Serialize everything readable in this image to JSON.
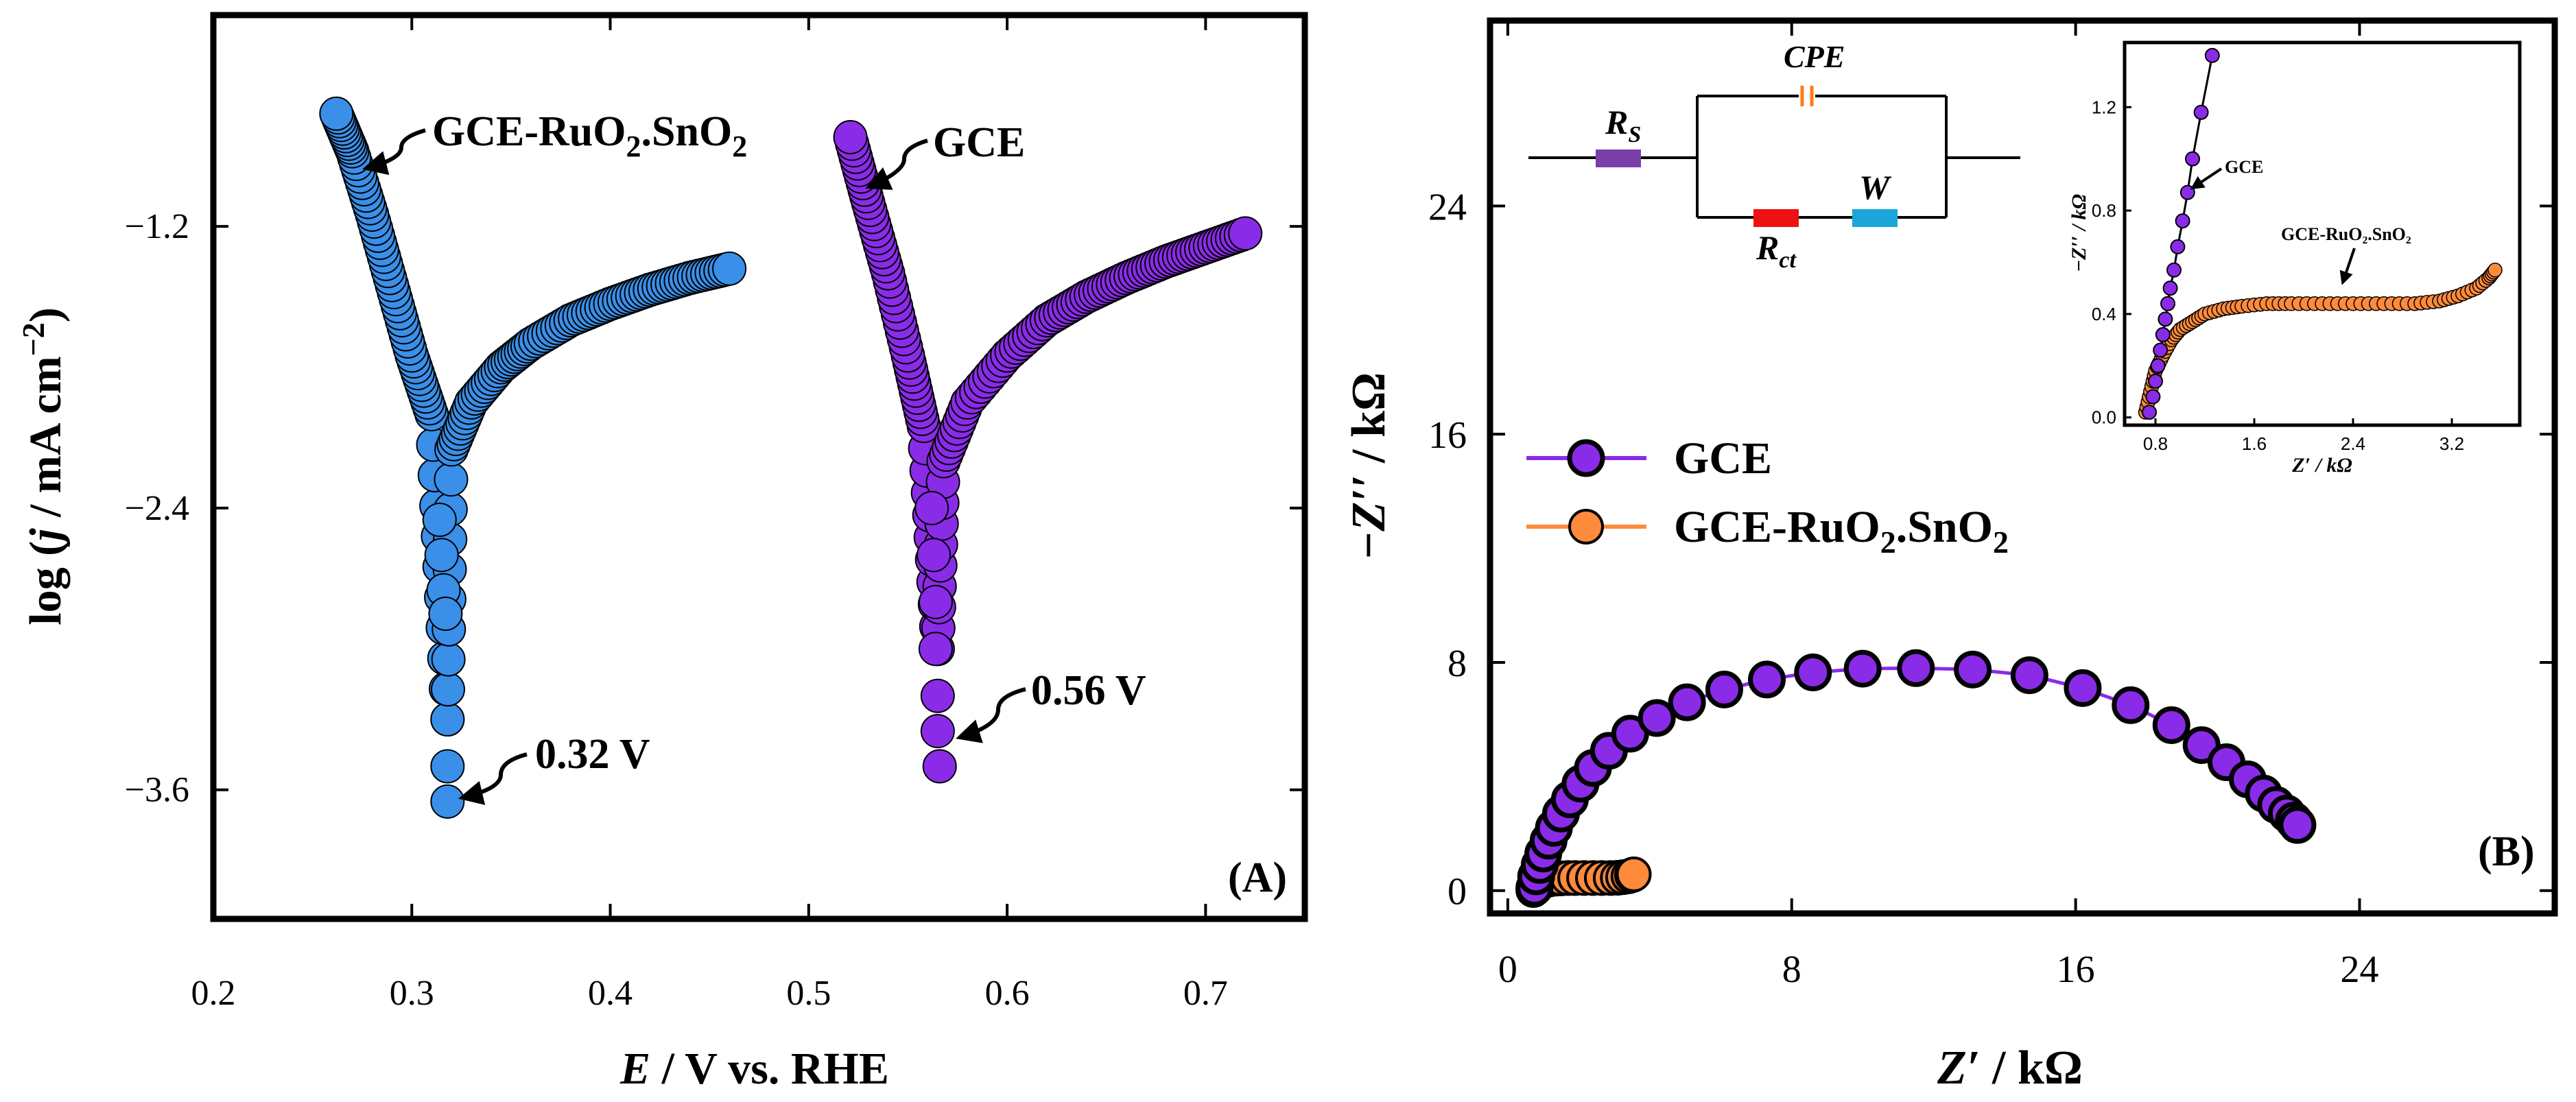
{
  "colors": {
    "blue": "#3a8fe8",
    "purple": "#8a2be8",
    "orange": "#ff8a3c",
    "rs": "#7a3ea8",
    "rct": "#ee1111",
    "w": "#1aa6d8",
    "cpe": "#ff7a1a"
  },
  "chart_data": [
    {
      "type": "scatter",
      "panel_label": "(A)",
      "xlabel": {
        "italic": "E",
        "rest": " / V vs. RHE"
      },
      "ylabel": {
        "pre": "log (",
        "italic": "j",
        "post": " / mA cm",
        "sup": "−2",
        "close": ")"
      },
      "xlim": [
        0.2,
        0.75
      ],
      "ylim": [
        -4.15,
        -0.3
      ],
      "x_ticks": [
        0.2,
        0.3,
        0.4,
        0.5,
        0.6,
        0.7
      ],
      "x_tick_labels": [
        "0.2",
        "0.3",
        "0.4",
        "0.5",
        "0.6",
        "0.7"
      ],
      "y_ticks": [
        -1.2,
        -2.4,
        -3.6
      ],
      "y_tick_labels": [
        "−1.2",
        "−2.4",
        "−3.6"
      ],
      "series": [
        {
          "name": "GCE-RuO2.SnO2",
          "color_key": "blue",
          "corr_x": 0.318,
          "corr_y": -3.3,
          "anodic": {
            "x": [
              0.32,
              0.33,
              0.345,
              0.36,
              0.38,
              0.4,
              0.42,
              0.44,
              0.46
            ],
            "y": [
              -2.15,
              -1.95,
              -1.8,
              -1.7,
              -1.6,
              -1.53,
              -1.47,
              -1.42,
              -1.38
            ]
          },
          "cathodic": {
            "x": [
              0.31,
              0.3,
              0.29,
              0.28,
              0.27,
              0.262
            ],
            "y": [
              -2.0,
              -1.75,
              -1.45,
              -1.15,
              -0.88,
              -0.72
            ]
          },
          "tail": {
            "x": [
              0.314,
              0.315,
              0.316,
              0.317,
              0.318,
              0.318
            ],
            "y": [
              -2.45,
              -2.6,
              -2.75,
              -2.85,
              -3.5,
              -3.65
            ]
          },
          "annotations": [
            {
              "label": "GCE-RuO₂.SnO₂",
              "text": "GCE-RuO",
              "sub1": "2",
              "mid": ".SnO",
              "sub2": "2"
            },
            {
              "label": "0.32 V"
            }
          ]
        },
        {
          "name": "GCE",
          "color_key": "purple",
          "corr_x": 0.565,
          "corr_y": -3.0,
          "anodic": {
            "x": [
              0.568,
              0.58,
              0.6,
              0.62,
              0.64,
              0.66,
              0.68,
              0.7,
              0.72
            ],
            "y": [
              -2.2,
              -1.95,
              -1.75,
              -1.6,
              -1.5,
              -1.42,
              -1.35,
              -1.29,
              -1.23
            ]
          },
          "cathodic": {
            "x": [
              0.558,
              0.55,
              0.54,
              0.53,
              0.521
            ],
            "y": [
              -2.05,
              -1.75,
              -1.4,
              -1.1,
              -0.82
            ]
          },
          "tail": {
            "x": [
              0.562,
              0.563,
              0.564,
              0.564,
              0.565,
              0.565,
              0.566
            ],
            "y": [
              -2.4,
              -2.6,
              -2.8,
              -3.0,
              -3.2,
              -3.35,
              -3.5
            ]
          },
          "annotations": [
            {
              "label": "GCE"
            },
            {
              "label": "0.56 V"
            }
          ]
        }
      ]
    },
    {
      "type": "scatter",
      "panel_label": "(B)",
      "xlabel": {
        "italic": "Z′",
        "rest": " / kΩ"
      },
      "ylabel": {
        "italic": "−Z′′",
        "rest": " / kΩ"
      },
      "xlim": [
        -0.5,
        29.5
      ],
      "ylim": [
        -0.8,
        30.5
      ],
      "x_ticks": [
        0,
        8,
        16,
        24
      ],
      "x_tick_labels": [
        "0",
        "8",
        "16",
        "24"
      ],
      "y_ticks": [
        0,
        8,
        16,
        24
      ],
      "y_tick_labels": [
        "0",
        "8",
        "16",
        "24"
      ],
      "series": [
        {
          "name": "GCE",
          "color_key": "purple",
          "x": [
            0.75,
            0.8,
            0.9,
            1.0,
            1.15,
            1.3,
            1.5,
            1.75,
            2.05,
            2.4,
            2.85,
            3.45,
            4.2,
            5.05,
            6.1,
            7.3,
            8.6,
            10.0,
            11.5,
            13.1,
            14.7,
            16.2,
            17.55,
            18.7,
            19.55,
            20.25,
            20.85,
            21.3,
            21.65,
            21.95,
            22.15,
            22.25
          ],
          "y": [
            0.1,
            0.5,
            0.9,
            1.3,
            1.75,
            2.2,
            2.7,
            3.2,
            3.75,
            4.3,
            4.9,
            5.5,
            6.05,
            6.6,
            7.05,
            7.4,
            7.65,
            7.78,
            7.8,
            7.75,
            7.55,
            7.1,
            6.5,
            5.8,
            5.1,
            4.5,
            3.9,
            3.4,
            3.0,
            2.7,
            2.45,
            2.3
          ]
        },
        {
          "name": "GCE-RuO2.SnO2",
          "color_key": "orange",
          "x": [
            0.72,
            0.76,
            0.8,
            0.86,
            0.93,
            1.0,
            1.1,
            1.2,
            1.35,
            1.5,
            1.7,
            1.9,
            2.15,
            2.4,
            2.65,
            2.9,
            3.1,
            3.25,
            3.4,
            3.5,
            3.55
          ],
          "y": [
            0.02,
            0.1,
            0.18,
            0.24,
            0.3,
            0.34,
            0.37,
            0.4,
            0.42,
            0.43,
            0.44,
            0.44,
            0.44,
            0.44,
            0.44,
            0.44,
            0.45,
            0.47,
            0.5,
            0.54,
            0.57
          ]
        }
      ],
      "legend": {
        "placement": "middle-left",
        "entries": [
          "GCE",
          "GCE-RuO2.SnO2"
        ],
        "text_gce": "GCE",
        "text_ru_a": "GCE-RuO",
        "sub1": "2",
        "text_ru_b": ".SnO",
        "sub2": "2"
      },
      "circuit": {
        "labels": [
          {
            "id": "rs",
            "base": "R",
            "sub": "S"
          },
          {
            "id": "cpe",
            "base": "CPE",
            "sub": ""
          },
          {
            "id": "rct",
            "base": "R",
            "sub": "ct"
          },
          {
            "id": "w",
            "base": "W",
            "sub": ""
          }
        ]
      },
      "inset": {
        "xlabel": "Z′ / kΩ",
        "ylabel": "−Z′′ / kΩ",
        "xlim": [
          0.55,
          3.75
        ],
        "ylim": [
          -0.03,
          1.45
        ],
        "x_ticks": [
          0.8,
          1.6,
          2.4,
          3.2
        ],
        "x_tick_labels": [
          "0.8",
          "1.6",
          "2.4",
          "3.2"
        ],
        "y_ticks": [
          0.0,
          0.4,
          0.8,
          1.2
        ],
        "y_tick_labels": [
          "0.0",
          "0.4",
          "0.8",
          "1.2"
        ],
        "annotations": [
          {
            "label": "GCE"
          },
          {
            "label": "GCE-RuO₂.SnO₂"
          }
        ],
        "gce_x": [
          0.75,
          0.78,
          0.8,
          0.82,
          0.84,
          0.86,
          0.88,
          0.9,
          0.92,
          0.95,
          0.98,
          1.02,
          1.06,
          1.1,
          1.17,
          1.26
        ],
        "gce_y": [
          0.02,
          0.08,
          0.14,
          0.2,
          0.26,
          0.32,
          0.38,
          0.44,
          0.5,
          0.57,
          0.66,
          0.76,
          0.87,
          1.0,
          1.18,
          1.4
        ]
      }
    }
  ]
}
